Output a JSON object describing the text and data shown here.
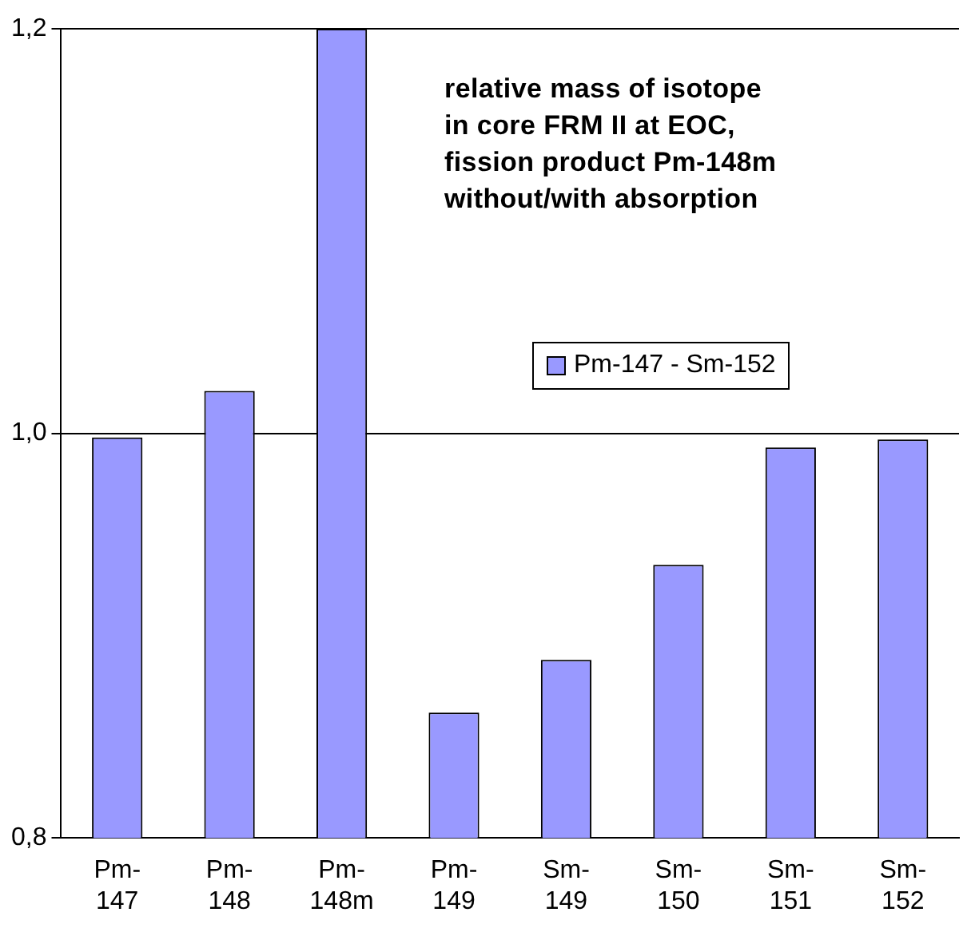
{
  "chart_data": {
    "type": "bar",
    "title": "relative mass of isotope\nin core FRM II at EOC,\nfission product Pm-148m\nwithout/with absorption",
    "categories": [
      "Pm-147",
      "Pm-148",
      "Pm-148m",
      "Pm-149",
      "Sm-149",
      "Sm-150",
      "Sm-151",
      "Sm-152"
    ],
    "series": [
      {
        "name": "Pm-147 - Sm-152",
        "color": "#9999ff",
        "values": [
          0.998,
          1.021,
          1.2,
          0.862,
          0.888,
          0.935,
          0.993,
          0.997
        ]
      }
    ],
    "ylim": [
      0.8,
      1.2
    ],
    "yticks": [
      {
        "value": 0.8,
        "label": "0,8"
      },
      {
        "value": 1.0,
        "label": "1,0"
      },
      {
        "value": 1.2,
        "label": "1,2"
      }
    ],
    "grid": "y",
    "legend": "top right"
  }
}
